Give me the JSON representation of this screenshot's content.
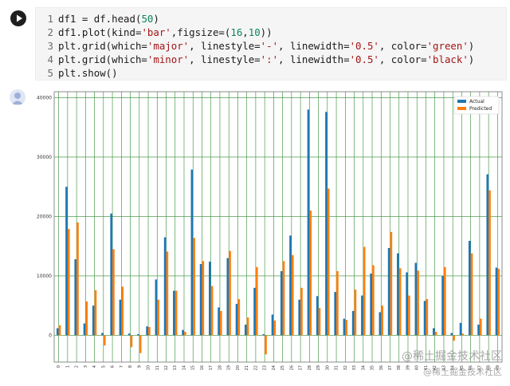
{
  "notebook": {
    "code_lines": [
      {
        "num": "1",
        "text": "df1 = df.head(50)"
      },
      {
        "num": "2",
        "text": "df1.plot(kind='bar',figsize=(16,10))"
      },
      {
        "num": "3",
        "text": "plt.grid(which='major', linestyle='-', linewidth='0.5', color='green')"
      },
      {
        "num": "4",
        "text": "plt.grid(which='minor', linestyle=':', linewidth='0.5', color='black')"
      },
      {
        "num": "5",
        "text": "plt.show()"
      }
    ],
    "run_icon": "play-icon",
    "output_icon": "output-avatar-icon"
  },
  "watermark": {
    "line1": "@稀土掘金技术社区",
    "line2": "@稀土掘金技术社区"
  },
  "chart_data": {
    "type": "bar",
    "categories": [
      "0",
      "1",
      "2",
      "3",
      "4",
      "5",
      "6",
      "7",
      "8",
      "9",
      "10",
      "11",
      "12",
      "13",
      "14",
      "15",
      "16",
      "17",
      "18",
      "19",
      "20",
      "21",
      "22",
      "23",
      "24",
      "25",
      "26",
      "27",
      "28",
      "29",
      "30",
      "31",
      "32",
      "33",
      "34",
      "35",
      "36",
      "37",
      "38",
      "39",
      "40",
      "41",
      "42",
      "43",
      "44",
      "45",
      "46",
      "47",
      "48",
      "49"
    ],
    "series": [
      {
        "name": "Actual",
        "color": "#1f77b4",
        "values": [
          1200,
          25000,
          12800,
          2000,
          5000,
          400,
          20500,
          6000,
          300,
          200,
          1500,
          9400,
          16500,
          7500,
          900,
          27900,
          12000,
          12400,
          4700,
          13000,
          5300,
          1800,
          8000,
          200,
          3500,
          10800,
          16800,
          6000,
          38000,
          6600,
          37600,
          7300,
          2800,
          4100,
          6700,
          10400,
          3900,
          14700,
          13800,
          10600,
          12200,
          5800,
          1200,
          10000,
          400,
          2100,
          15900,
          1800,
          27100,
          11400
        ]
      },
      {
        "name": "Predicted",
        "color": "#ff7f0e",
        "values": [
          1700,
          17900,
          19000,
          5700,
          7600,
          -1700,
          14500,
          8200,
          -2000,
          -3000,
          1400,
          6000,
          14100,
          7500,
          600,
          16400,
          12500,
          8300,
          4100,
          14200,
          6100,
          3000,
          11500,
          -3200,
          2500,
          12500,
          13500,
          8000,
          21000,
          4600,
          24700,
          10800,
          2600,
          7700,
          14900,
          11800,
          5000,
          17400,
          11300,
          6700,
          10900,
          6100,
          600,
          11500,
          -900,
          300,
          13800,
          2800,
          24400,
          11200
        ]
      }
    ],
    "ylim": [
      -4500,
      41000
    ],
    "yticks": [
      0,
      10000,
      20000,
      30000,
      40000
    ],
    "grid": true,
    "legend_position": "top-right"
  }
}
